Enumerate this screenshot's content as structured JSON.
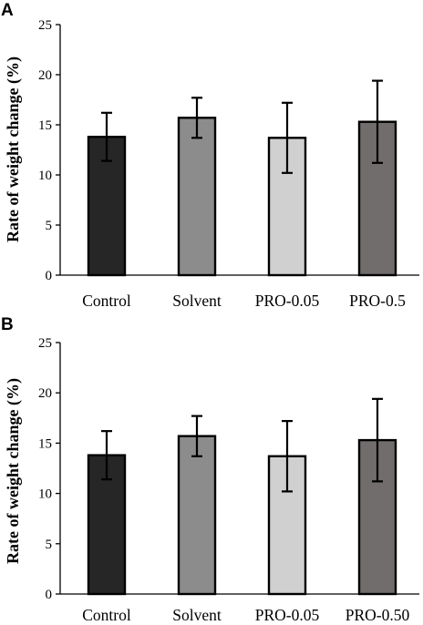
{
  "panels": [
    {
      "letter": "A",
      "chart_data": {
        "type": "bar",
        "categories": [
          "Control",
          "Solvent",
          "PRO-0.05",
          "PRO-0.5"
        ],
        "values": [
          13.8,
          15.7,
          13.7,
          15.3
        ],
        "errors": [
          2.4,
          2.0,
          3.5,
          4.1
        ],
        "bar_colors": [
          "#262626",
          "#8c8c8c",
          "#d0d0d0",
          "#716d6d"
        ],
        "title": "",
        "xlabel": "",
        "ylabel": "Rate of weight change (%)",
        "ylim": [
          0,
          25
        ],
        "yticks": [
          "0",
          "5",
          "10",
          "15",
          "20",
          "25"
        ],
        "grid": false
      }
    },
    {
      "letter": "B",
      "chart_data": {
        "type": "bar",
        "categories": [
          "Control",
          "Solvent",
          "PRO-0.05",
          "PRO-0.50"
        ],
        "values": [
          13.8,
          15.7,
          13.7,
          15.3
        ],
        "errors": [
          2.4,
          2.0,
          3.5,
          4.1
        ],
        "bar_colors": [
          "#262626",
          "#8c8c8c",
          "#d0d0d0",
          "#716d6d"
        ],
        "title": "",
        "xlabel": "",
        "ylabel": "Rate of weight change (%)",
        "ylim": [
          0,
          25
        ],
        "yticks": [
          "0",
          "5",
          "10",
          "15",
          "20",
          "25"
        ],
        "grid": false
      }
    }
  ]
}
